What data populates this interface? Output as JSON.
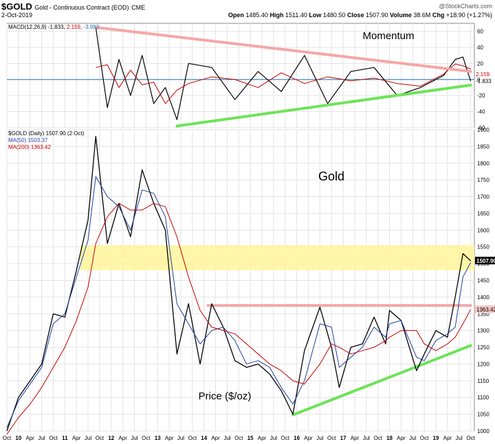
{
  "header": {
    "symbol": "$GOLD",
    "description": "Gold - Continuous Contract (EOD)",
    "exchange": "CME",
    "date": "2-Oct-2019",
    "watermark": "@StockCharts.com",
    "open_label": "Open",
    "open_value": "1485.40",
    "high_label": "High",
    "high_value": "1511.40",
    "low_label": "Low",
    "low_value": "1480.50",
    "close_label": "Close",
    "close_value": "1507.90",
    "volume_label": "Volume",
    "volume_value": "38.6M",
    "chg_label": "Chg",
    "chg_value": "+18.90 (+1.27%)"
  },
  "chart_data": [
    {
      "type": "line",
      "panel": "MACD",
      "title": "Momentum",
      "legend": {
        "prefix": "MACD(12,26,9)",
        "macd": "-1.833",
        "signal": "2.159",
        "histogram": "-3.992"
      },
      "colors": {
        "macd": "#000000",
        "signal": "#c00000",
        "histogram": "#1f6fb4",
        "resistance": "#f4a7a7",
        "support": "#6ee35a"
      },
      "ylim": [
        -60,
        70
      ],
      "yticks": [
        -60,
        -40,
        -20,
        0,
        20,
        40,
        60
      ],
      "last_value_labels": [
        "-1.833",
        "2.159"
      ],
      "trendlines": [
        {
          "name": "resistance",
          "from": [
            "2011-09",
            65
          ],
          "to": [
            "2019-10",
            10
          ]
        },
        {
          "name": "support",
          "from": [
            "2013-06",
            -58
          ],
          "to": [
            "2019-10",
            -7
          ]
        }
      ],
      "x": [
        "2011-09",
        "2011-12",
        "2012-03",
        "2012-06",
        "2012-09",
        "2012-12",
        "2013-03",
        "2013-06",
        "2013-09",
        "2014-03",
        "2014-09",
        "2015-03",
        "2015-09",
        "2016-03",
        "2016-09",
        "2017-03",
        "2017-09",
        "2018-03",
        "2018-09",
        "2019-03",
        "2019-06",
        "2019-08",
        "2019-10"
      ],
      "macd_values": [
        65,
        -35,
        25,
        -20,
        30,
        -30,
        -10,
        -50,
        20,
        15,
        -25,
        10,
        -15,
        30,
        -30,
        10,
        15,
        -20,
        -10,
        5,
        25,
        28,
        -2
      ]
    },
    {
      "type": "line",
      "panel": "Price",
      "title": "Gold",
      "ylabel": "Price ($/oz)",
      "legend": [
        {
          "name": "$GOLD (Daily) 1507.90 (2 Oct)",
          "color": "#000000"
        },
        {
          "name": "MA(50) 1503.37",
          "color": "#1f3fa0"
        },
        {
          "name": "MA(200) 1363.42",
          "color": "#c00000"
        }
      ],
      "ylim": [
        1000,
        1900
      ],
      "yticks": [
        1000,
        1050,
        1100,
        1150,
        1200,
        1250,
        1300,
        1350,
        1400,
        1450,
        1500,
        1550,
        1600,
        1650,
        1700,
        1750,
        1800,
        1850,
        1900
      ],
      "last_value_labels": [
        "1507.90",
        "1363.42"
      ],
      "xtick_labels": [
        "Oct",
        "10",
        "Apr",
        "Jul",
        "Oct",
        "11",
        "Apr",
        "Jul",
        "Oct",
        "12",
        "Apr",
        "Jul",
        "Oct",
        "13",
        "Apr",
        "Jul",
        "Oct",
        "14",
        "Apr",
        "Jul",
        "Oct",
        "15",
        "Apr",
        "Jul",
        "Oct",
        "16",
        "Apr",
        "Jul",
        "Oct",
        "17",
        "Apr",
        "Jul",
        "Oct",
        "18",
        "Apr",
        "Jul",
        "Oct",
        "19",
        "Apr",
        "Jul",
        "Oct"
      ],
      "zones": [
        {
          "name": "support/resistance band",
          "from": 1480,
          "to": 1555,
          "color": "#fff59a"
        }
      ],
      "trendlines": [
        {
          "name": "resistance",
          "from": [
            "2014-02",
            1375
          ],
          "to": [
            "2019-10",
            1375
          ],
          "color": "#f4a7a7"
        },
        {
          "name": "support",
          "from": [
            "2015-12",
            1048
          ],
          "to": [
            "2019-10",
            1255
          ],
          "color": "#6ee35a"
        }
      ],
      "x": [
        "2009-10",
        "2010-01",
        "2010-04",
        "2010-07",
        "2010-10",
        "2011-01",
        "2011-04",
        "2011-07",
        "2011-09",
        "2011-12",
        "2012-03",
        "2012-06",
        "2012-09",
        "2012-12",
        "2013-03",
        "2013-06",
        "2013-09",
        "2013-12",
        "2014-03",
        "2014-06",
        "2014-09",
        "2014-12",
        "2015-03",
        "2015-06",
        "2015-09",
        "2015-12",
        "2016-03",
        "2016-07",
        "2016-10",
        "2016-12",
        "2017-03",
        "2017-06",
        "2017-09",
        "2017-12",
        "2018-01",
        "2018-04",
        "2018-08",
        "2018-10",
        "2019-01",
        "2019-04",
        "2019-06",
        "2019-08",
        "2019-10"
      ],
      "series": [
        {
          "name": "$GOLD",
          "values": [
            1000,
            1100,
            1150,
            1200,
            1350,
            1340,
            1480,
            1630,
            1880,
            1560,
            1680,
            1580,
            1780,
            1680,
            1600,
            1230,
            1380,
            1200,
            1380,
            1310,
            1210,
            1190,
            1200,
            1170,
            1120,
            1050,
            1240,
            1370,
            1250,
            1130,
            1250,
            1260,
            1340,
            1260,
            1360,
            1330,
            1180,
            1230,
            1300,
            1280,
            1400,
            1530,
            1508
          ]
        },
        {
          "name": "MA(50)",
          "values": [
            1010,
            1090,
            1140,
            1190,
            1320,
            1350,
            1460,
            1570,
            1760,
            1700,
            1670,
            1600,
            1720,
            1710,
            1640,
            1380,
            1320,
            1260,
            1300,
            1310,
            1270,
            1200,
            1210,
            1190,
            1130,
            1080,
            1150,
            1320,
            1310,
            1190,
            1220,
            1250,
            1310,
            1280,
            1320,
            1330,
            1220,
            1210,
            1270,
            1290,
            1310,
            1460,
            1503
          ]
        },
        {
          "name": "MA(200)",
          "values": [
            990,
            1040,
            1080,
            1130,
            1190,
            1250,
            1330,
            1430,
            1560,
            1640,
            1680,
            1660,
            1660,
            1680,
            1670,
            1580,
            1460,
            1360,
            1310,
            1300,
            1290,
            1260,
            1230,
            1200,
            1180,
            1150,
            1140,
            1200,
            1260,
            1250,
            1230,
            1240,
            1250,
            1270,
            1280,
            1300,
            1300,
            1260,
            1240,
            1260,
            1280,
            1320,
            1363
          ]
        }
      ]
    }
  ]
}
